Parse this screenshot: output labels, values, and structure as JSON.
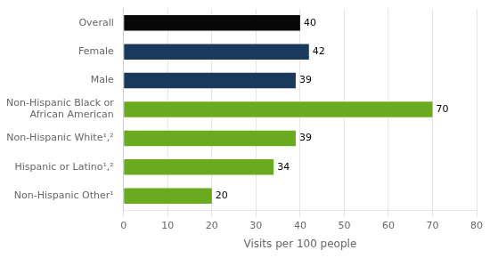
{
  "chart_data": {
    "type": "bar",
    "orientation": "horizontal",
    "categories": [
      "Non-Hispanic Other¹",
      "Hispanic or Latino¹,²",
      "Non-Hispanic White¹,²",
      "Non-Hispanic Black or\nAfrican American",
      "Male",
      "Female",
      "Overall"
    ],
    "values": [
      20,
      34,
      39,
      70,
      39,
      42,
      40
    ],
    "colors": [
      "#6aaa1e",
      "#6aaa1e",
      "#6aaa1e",
      "#6aaa1e",
      "#1a3a5c",
      "#1a3a5c",
      "#080808"
    ],
    "xlabel": "Visits per 100 people",
    "xlim": [
      0,
      80
    ],
    "xticks": [
      0,
      10,
      20,
      30,
      40,
      50,
      60,
      70,
      80
    ],
    "grid": true,
    "data_labels": true
  }
}
